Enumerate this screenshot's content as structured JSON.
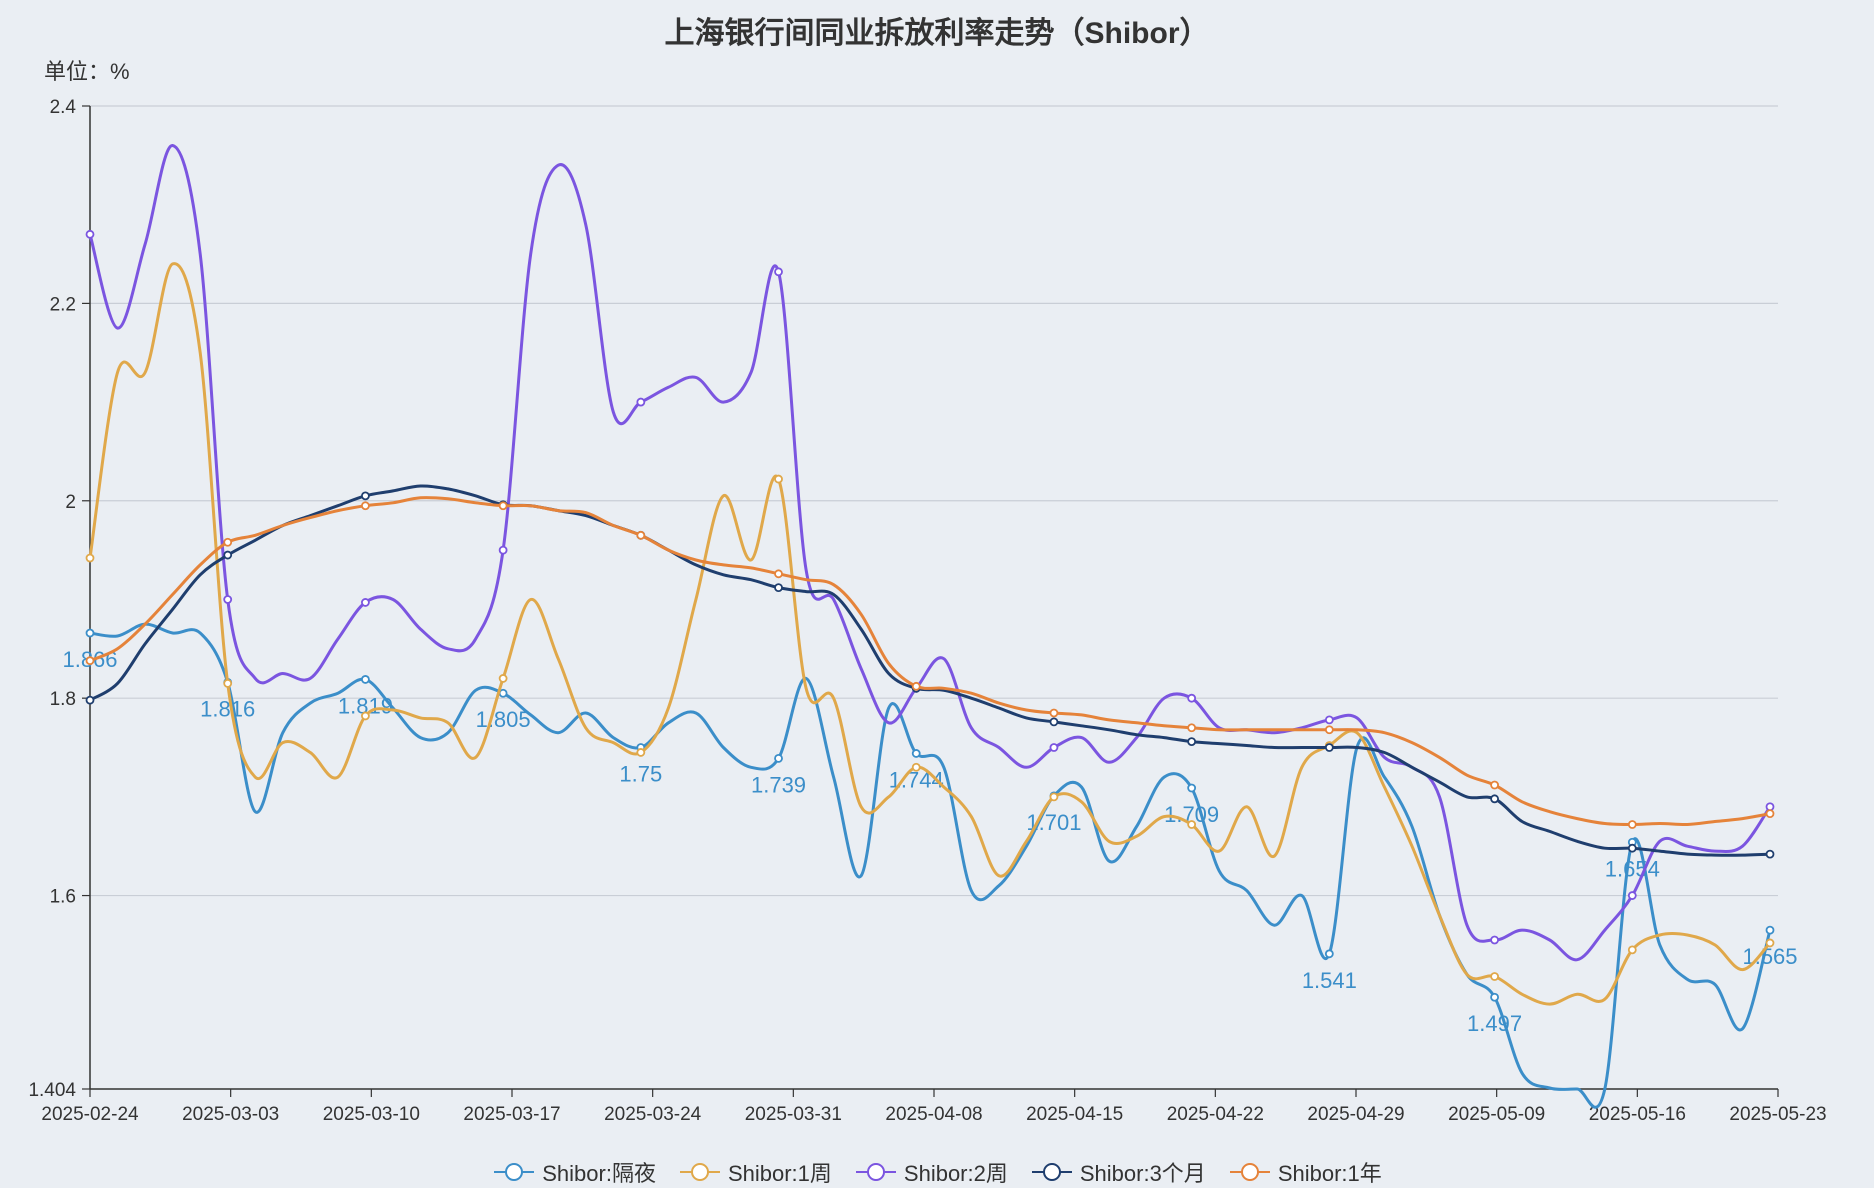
{
  "chart_data": {
    "type": "line",
    "title": "上海银行间同业拆放利率走势（Shibor）",
    "unit_label": "单位：%",
    "ylim": [
      1.404,
      2.4
    ],
    "y_ticks": [
      "1.404",
      "1.6",
      "1.8",
      "2",
      "2.2",
      "2.4"
    ],
    "x_ticks": [
      "2025-02-24",
      "2025-03-03",
      "2025-03-10",
      "2025-03-17",
      "2025-03-24",
      "2025-03-31",
      "2025-04-08",
      "2025-04-15",
      "2025-04-22",
      "2025-04-29",
      "2025-05-09",
      "2025-05-16",
      "2025-05-23"
    ],
    "grid": true,
    "legend_position": "bottom",
    "series": [
      {
        "name": "Shibor:隔夜",
        "color": "#3b8ec9",
        "values": [
          1.866,
          1.863,
          1.875,
          1.866,
          1.866,
          1.816,
          1.685,
          1.765,
          1.795,
          1.805,
          1.819,
          1.79,
          1.76,
          1.765,
          1.808,
          1.805,
          1.783,
          1.765,
          1.785,
          1.76,
          1.75,
          1.775,
          1.785,
          1.75,
          1.73,
          1.739,
          1.82,
          1.72,
          1.62,
          1.79,
          1.744,
          1.73,
          1.605,
          1.61,
          1.65,
          1.701,
          1.71,
          1.635,
          1.67,
          1.72,
          1.709,
          1.625,
          1.605,
          1.57,
          1.6,
          1.541,
          1.75,
          1.72,
          1.67,
          1.58,
          1.52,
          1.497,
          1.42,
          1.405,
          1.404,
          1.404,
          1.654,
          1.55,
          1.515,
          1.51,
          1.465,
          1.565
        ],
        "labels": {
          "0": "1.866",
          "5": "1.816",
          "10": "1.819",
          "15": "1.805",
          "20": "1.75",
          "25": "1.739",
          "30": "1.744",
          "35": "1.701",
          "40": "1.709",
          "45": "1.541",
          "51": "1.497",
          "56": "1.654",
          "61": "1.565"
        }
      },
      {
        "name": "Shibor:1周",
        "color": "#e0a84a",
        "values": [
          1.942,
          2.13,
          2.13,
          2.24,
          2.15,
          1.815,
          1.72,
          1.755,
          1.745,
          1.72,
          1.782,
          1.788,
          1.78,
          1.775,
          1.74,
          1.82,
          1.9,
          1.84,
          1.77,
          1.755,
          1.745,
          1.79,
          1.9,
          2.005,
          1.94,
          2.022,
          1.81,
          1.8,
          1.69,
          1.7,
          1.73,
          1.71,
          1.68,
          1.62,
          1.655,
          1.7,
          1.695,
          1.655,
          1.66,
          1.68,
          1.672,
          1.645,
          1.69,
          1.64,
          1.73,
          1.752,
          1.765,
          1.71,
          1.65,
          1.58,
          1.52,
          1.518,
          1.5,
          1.49,
          1.5,
          1.495,
          1.545,
          1.56,
          1.56,
          1.55,
          1.525,
          1.552
        ]
      },
      {
        "name": "Shibor:2周",
        "color": "#7b55e0",
        "values": [
          2.27,
          2.175,
          2.26,
          2.36,
          2.25,
          1.9,
          1.82,
          1.825,
          1.82,
          1.86,
          1.897,
          1.9,
          1.87,
          1.85,
          1.86,
          1.95,
          2.25,
          2.34,
          2.28,
          2.09,
          2.1,
          2.115,
          2.125,
          2.1,
          2.13,
          2.232,
          1.93,
          1.9,
          1.83,
          1.775,
          1.81,
          1.84,
          1.77,
          1.75,
          1.73,
          1.75,
          1.76,
          1.735,
          1.76,
          1.8,
          1.8,
          1.77,
          1.768,
          1.765,
          1.77,
          1.778,
          1.78,
          1.74,
          1.73,
          1.7,
          1.57,
          1.555,
          1.565,
          1.555,
          1.535,
          1.565,
          1.6,
          1.655,
          1.65,
          1.645,
          1.65,
          1.69
        ]
      },
      {
        "name": "Shibor:3个月",
        "color": "#1f3e6e",
        "values": [
          1.798,
          1.815,
          1.855,
          1.89,
          1.925,
          1.945,
          1.96,
          1.975,
          1.985,
          1.995,
          2.005,
          2.01,
          2.015,
          2.012,
          2.005,
          1.996,
          1.995,
          1.99,
          1.985,
          1.975,
          1.965,
          1.95,
          1.935,
          1.925,
          1.92,
          1.912,
          1.908,
          1.905,
          1.87,
          1.825,
          1.81,
          1.808,
          1.8,
          1.79,
          1.78,
          1.776,
          1.772,
          1.768,
          1.763,
          1.76,
          1.756,
          1.754,
          1.752,
          1.75,
          1.75,
          1.75,
          1.75,
          1.745,
          1.73,
          1.715,
          1.7,
          1.698,
          1.675,
          1.665,
          1.655,
          1.648,
          1.648,
          1.645,
          1.642,
          1.641,
          1.641,
          1.642
        ]
      },
      {
        "name": "Shibor:1年",
        "color": "#e5833a",
        "values": [
          1.838,
          1.85,
          1.875,
          1.905,
          1.935,
          1.958,
          1.965,
          1.975,
          1.983,
          1.99,
          1.995,
          1.998,
          2.003,
          2.002,
          1.998,
          1.995,
          1.995,
          1.99,
          1.988,
          1.975,
          1.965,
          1.95,
          1.94,
          1.935,
          1.932,
          1.926,
          1.92,
          1.915,
          1.885,
          1.835,
          1.812,
          1.81,
          1.805,
          1.795,
          1.788,
          1.785,
          1.783,
          1.778,
          1.775,
          1.772,
          1.77,
          1.768,
          1.768,
          1.768,
          1.768,
          1.768,
          1.768,
          1.765,
          1.755,
          1.74,
          1.722,
          1.712,
          1.695,
          1.685,
          1.678,
          1.673,
          1.672,
          1.673,
          1.672,
          1.675,
          1.678,
          1.683
        ]
      }
    ]
  }
}
